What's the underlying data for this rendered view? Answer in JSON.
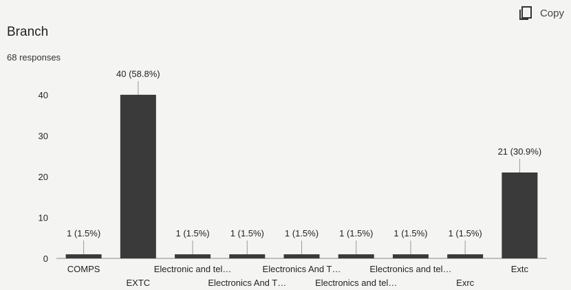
{
  "header": {
    "copy_label": "Copy",
    "title": "Branch",
    "responses": "68 responses"
  },
  "chart_data": {
    "type": "bar",
    "title": "Branch",
    "categories": [
      "COMPS",
      "EXTC",
      "Electronic and tel…",
      "Electronics And T…",
      "Electronics And T…",
      "Electronics and tel…",
      "Electronics and tel…",
      "Exrc",
      "Extc"
    ],
    "values": [
      1,
      40,
      1,
      1,
      1,
      1,
      1,
      1,
      21
    ],
    "data_labels": [
      "1 (1.5%)",
      "40 (58.8%)",
      "1 (1.5%)",
      "1 (1.5%)",
      "1 (1.5%)",
      "1 (1.5%)",
      "1 (1.5%)",
      "1 (1.5%)",
      "21 (30.9%)"
    ],
    "y_ticks": [
      0,
      10,
      20,
      30,
      40
    ],
    "ylim": [
      0,
      42
    ],
    "bar_color": "#3a3a3a",
    "grid": false
  }
}
